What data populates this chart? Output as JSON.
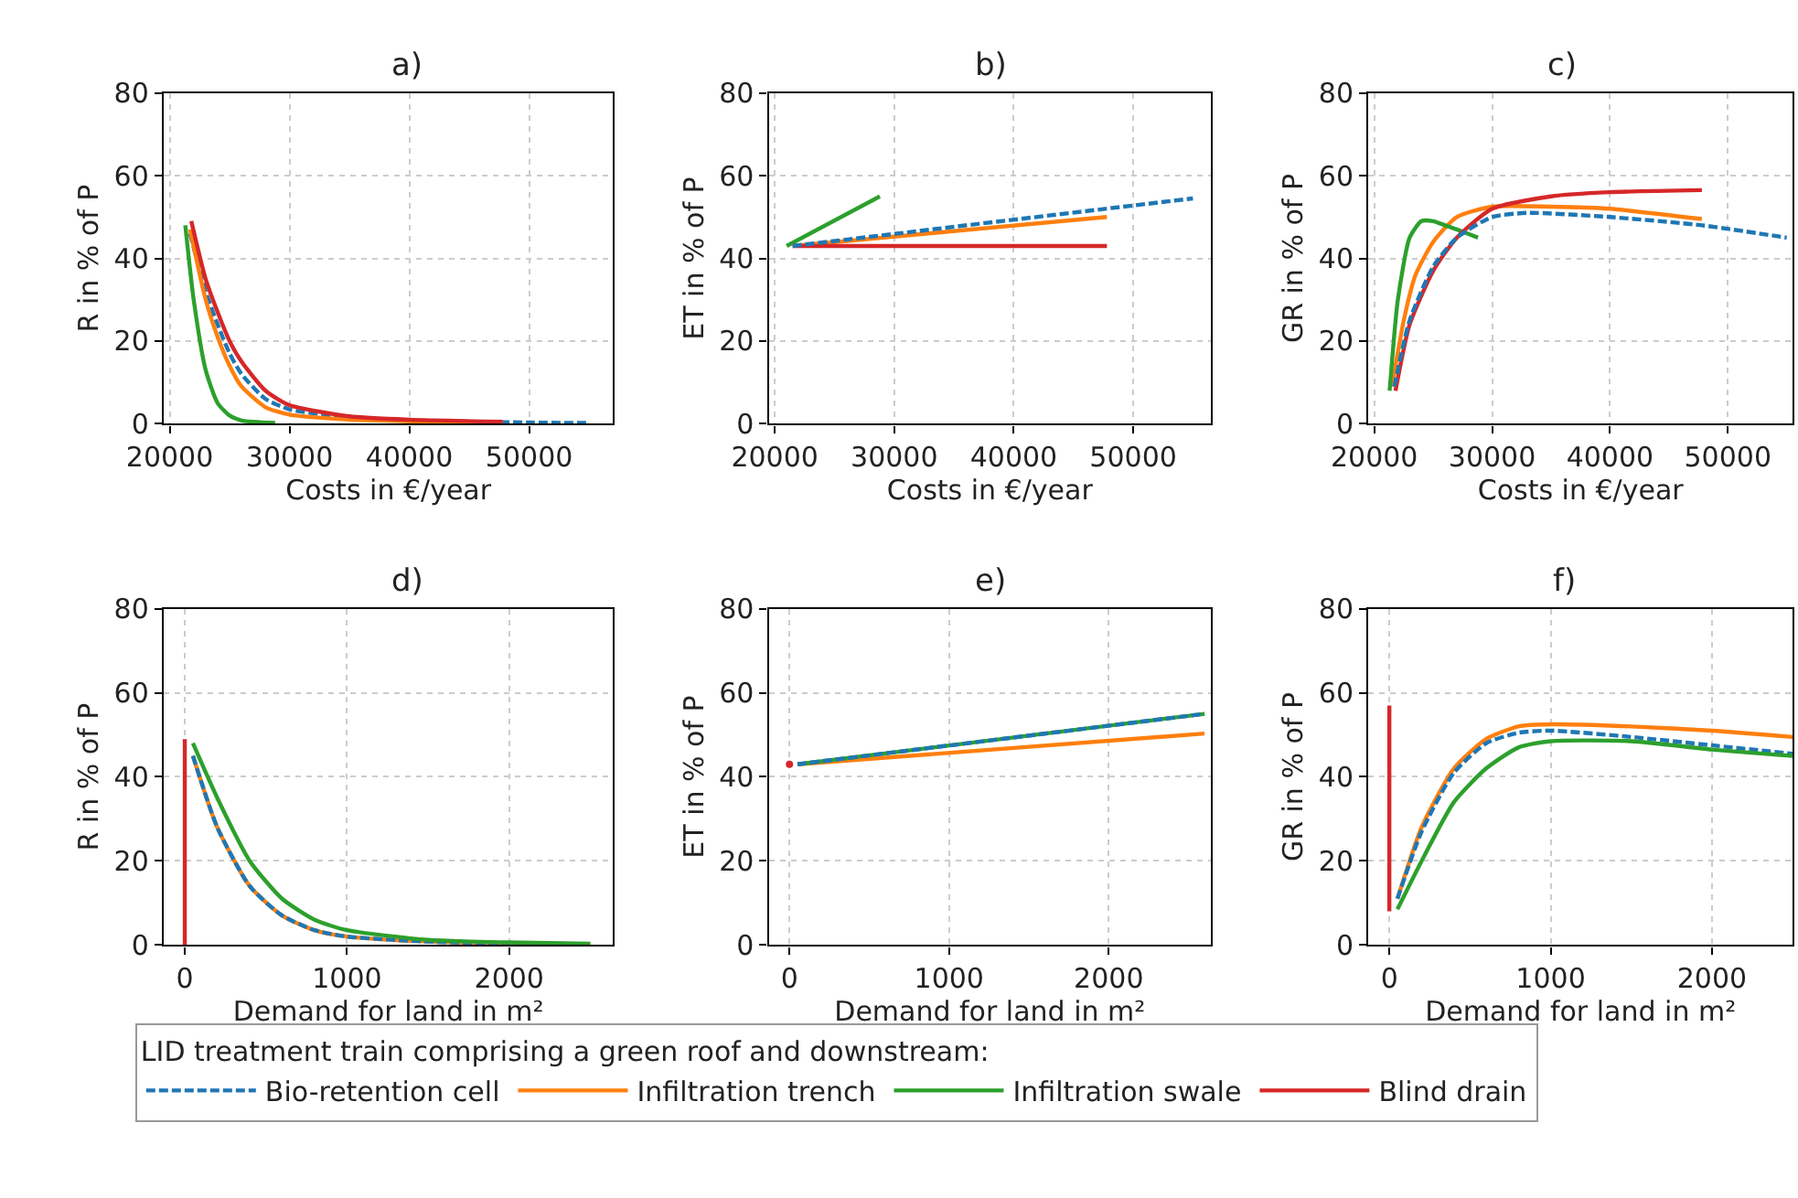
{
  "chart_data": [
    {
      "type": "line",
      "title": "a)",
      "xlabel": "Costs in €/year",
      "ylabel": "R in % of P",
      "xlim": [
        19500,
        57000
      ],
      "xticks": [
        20000,
        30000,
        40000,
        50000
      ],
      "ylim": [
        0,
        80
      ],
      "yticks": [
        0,
        20,
        40,
        60,
        80
      ],
      "grid": true,
      "marker": "none",
      "legend": "bottom",
      "legend_title": "LID treatment train comprising a green roof and downstream:",
      "series": [
        {
          "name": "Bio-retention cell",
          "color": "#1f77b4",
          "line_style": "dashed",
          "x": [
            21700,
            23000,
            24000,
            25000,
            26000,
            28000,
            30000,
            35000,
            40000,
            50000,
            55000
          ],
          "values": [
            46,
            32,
            24,
            17,
            12,
            6,
            3.5,
            1.5,
            0.8,
            0.3,
            0.2
          ]
        },
        {
          "name": "Infiltration trench",
          "color": "#ff7f0e",
          "x": [
            21700,
            23000,
            24000,
            25000,
            26000,
            28000,
            30000,
            35000,
            40000,
            47800
          ],
          "values": [
            47,
            30,
            21,
            14,
            9,
            4,
            2.2,
            1,
            0.6,
            0.3
          ]
        },
        {
          "name": "Infiltration swale",
          "color": "#2ca02c",
          "x": [
            21300,
            22000,
            23000,
            24000,
            25000,
            26000,
            28800
          ],
          "values": [
            48,
            30,
            13,
            5,
            2,
            0.8,
            0.2
          ]
        },
        {
          "name": "Blind drain",
          "color": "#d62728",
          "x": [
            21800,
            23000,
            24000,
            25000,
            26000,
            28000,
            30000,
            35000,
            40000,
            47800
          ],
          "values": [
            49,
            35,
            27,
            20,
            15,
            8,
            4.5,
            1.8,
            1,
            0.5
          ]
        }
      ]
    },
    {
      "type": "line",
      "title": "b)",
      "xlabel": "Costs in €/year",
      "ylabel": "ET in % of P",
      "xlim": [
        19500,
        56500
      ],
      "xticks": [
        20000,
        30000,
        40000,
        50000
      ],
      "ylim": [
        0,
        80
      ],
      "yticks": [
        0,
        20,
        40,
        60,
        80
      ],
      "grid": true,
      "marker": "none",
      "series": [
        {
          "color": "#ff7f0e",
          "x": [
            21500,
            47800
          ],
          "values": [
            43,
            50
          ]
        },
        {
          "color": "#2ca02c",
          "x": [
            21000,
            28800
          ],
          "values": [
            43,
            55
          ]
        },
        {
          "color": "#d62728",
          "x": [
            21500,
            47800
          ],
          "values": [
            43,
            43
          ]
        },
        {
          "color": "#1f77b4",
          "line_style": "dashed",
          "x": [
            21500,
            55000
          ],
          "values": [
            43,
            54.5
          ]
        }
      ]
    },
    {
      "type": "line",
      "title": "c)",
      "xlabel": "Costs in €/year",
      "ylabel": "GR in % of P",
      "xlim": [
        19500,
        55500
      ],
      "xticks": [
        20000,
        30000,
        40000,
        50000
      ],
      "ylim": [
        0,
        80
      ],
      "yticks": [
        0,
        20,
        40,
        60,
        80
      ],
      "grid": true,
      "marker": "none",
      "series": [
        {
          "color": "#ff7f0e",
          "x": [
            21500,
            22500,
            23500,
            25000,
            27000,
            30000,
            35000,
            40000,
            47800
          ],
          "values": [
            9,
            25,
            36,
            44,
            50,
            52.5,
            52.5,
            52,
            49.5
          ]
        },
        {
          "color": "#2ca02c",
          "x": [
            21300,
            22000,
            23000,
            24000,
            25000,
            26000,
            27000,
            28800
          ],
          "values": [
            8,
            30,
            45,
            49,
            49,
            48,
            47,
            45
          ]
        },
        {
          "color": "#d62728",
          "x": [
            21800,
            23000,
            25000,
            27000,
            30000,
            35000,
            40000,
            47800
          ],
          "values": [
            8,
            24,
            37,
            45,
            52,
            55,
            56,
            56.5
          ]
        },
        {
          "color": "#1f77b4",
          "line_style": "dashed",
          "x": [
            21700,
            23000,
            25000,
            27000,
            30000,
            33000,
            40000,
            47800,
            55000
          ],
          "values": [
            9,
            25,
            38,
            45,
            50,
            51,
            50,
            48,
            45
          ]
        }
      ]
    },
    {
      "type": "line",
      "title": "d)",
      "xlabel": "Demand for land in m²",
      "ylabel": "R in % of P",
      "xlim": [
        -130,
        2640
      ],
      "xticks": [
        0,
        1000,
        2000
      ],
      "ylim": [
        0,
        80
      ],
      "yticks": [
        0,
        20,
        40,
        60,
        80
      ],
      "grid": true,
      "marker": "none",
      "series": [
        {
          "color": "#ff7f0e",
          "x": [
            50,
            200,
            400,
            600,
            800,
            1000,
            1500,
            2000,
            2500
          ],
          "values": [
            45,
            28,
            14,
            7,
            3.5,
            2,
            0.8,
            0.4,
            0.2
          ]
        },
        {
          "color": "#1f77b4",
          "line_style": "dashed",
          "x": [
            50,
            200,
            400,
            600,
            800,
            1000,
            1500,
            2000,
            2500
          ],
          "values": [
            45,
            28,
            14,
            7,
            3.5,
            2,
            0.8,
            0.4,
            0.2
          ]
        },
        {
          "color": "#2ca02c",
          "x": [
            50,
            200,
            400,
            600,
            800,
            1000,
            1500,
            2000,
            2500
          ],
          "values": [
            48,
            35,
            20,
            11,
            6,
            3.5,
            1.2,
            0.6,
            0.3
          ]
        },
        {
          "color": "#d62728",
          "x": [
            0,
            0
          ],
          "values": [
            0,
            49
          ]
        }
      ]
    },
    {
      "type": "line",
      "title": "e)",
      "xlabel": "Demand for land in m²",
      "ylabel": "ET in % of P",
      "xlim": [
        -130,
        2640
      ],
      "xticks": [
        0,
        1000,
        2000
      ],
      "ylim": [
        0,
        80
      ],
      "yticks": [
        0,
        20,
        40,
        60,
        80
      ],
      "grid": true,
      "marker": "none",
      "series": [
        {
          "color": "#ff7f0e",
          "x": [
            50,
            2600
          ],
          "values": [
            43,
            50.3
          ]
        },
        {
          "color": "#2ca02c",
          "x": [
            50,
            2600
          ],
          "values": [
            43,
            55
          ]
        },
        {
          "color": "#1f77b4",
          "line_style": "dashed",
          "x": [
            50,
            2600
          ],
          "values": [
            43,
            55
          ]
        },
        {
          "color": "#d62728",
          "type": "scatter",
          "marker": "circle",
          "x": [
            0
          ],
          "values": [
            43
          ]
        }
      ]
    },
    {
      "type": "line",
      "title": "f)",
      "xlabel": "Demand for land in m²",
      "ylabel": "GR in % of P",
      "xlim": [
        -130,
        2500
      ],
      "xticks": [
        0,
        1000,
        2000
      ],
      "ylim": [
        0,
        80
      ],
      "yticks": [
        0,
        20,
        40,
        60,
        80
      ],
      "grid": true,
      "marker": "none",
      "series": [
        {
          "color": "#ff7f0e",
          "x": [
            50,
            200,
            400,
            600,
            800,
            1000,
            1500,
            2000,
            2500
          ],
          "values": [
            11,
            28,
            42,
            49,
            52,
            52.5,
            52,
            51,
            49.5
          ]
        },
        {
          "color": "#1f77b4",
          "line_style": "dashed",
          "x": [
            50,
            200,
            400,
            600,
            800,
            1000,
            1500,
            2000,
            2500
          ],
          "values": [
            11,
            27,
            41,
            48,
            50.5,
            51,
            49.5,
            47.5,
            45.5
          ]
        },
        {
          "color": "#2ca02c",
          "x": [
            50,
            200,
            400,
            600,
            800,
            1000,
            1500,
            2000,
            2500
          ],
          "values": [
            8.5,
            20,
            34,
            42,
            47,
            48.5,
            48.5,
            46.5,
            45
          ]
        },
        {
          "color": "#d62728",
          "x": [
            0,
            0
          ],
          "values": [
            8,
            57
          ]
        }
      ]
    }
  ]
}
